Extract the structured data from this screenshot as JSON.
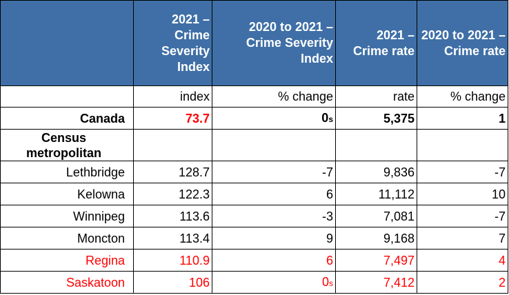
{
  "columns": [
    "2021 – Crime Severity Index",
    "2020 to 2021 – Crime Severity Index",
    "2021 – Crime rate",
    "2020 to 2021 – Crime rate"
  ],
  "units": [
    "index",
    "% change",
    "rate",
    "% change"
  ],
  "canada": {
    "label": "Canada",
    "csi": "73.7",
    "csi_change": "0",
    "csi_change_flag": "s",
    "rate": "5,375",
    "rate_change": "1"
  },
  "section_label": "Census metropolitan",
  "rows": [
    {
      "name": "Lethbridge",
      "csi": "128.7",
      "csi_change": "-7",
      "rate": "9,836",
      "rate_change": "-7"
    },
    {
      "name": "Kelowna",
      "csi": "122.3",
      "csi_change": "6",
      "rate": "11,112",
      "rate_change": "10"
    },
    {
      "name": "Winnipeg",
      "csi": "113.6",
      "csi_change": "-3",
      "rate": "7,081",
      "rate_change": "-7"
    },
    {
      "name": "Moncton",
      "csi": "113.4",
      "csi_change": "9",
      "rate": "9,168",
      "rate_change": "7"
    },
    {
      "name": "Regina",
      "csi": "110.9",
      "csi_change": "6",
      "rate": "7,497",
      "rate_change": "4"
    },
    {
      "name": "Saskatoon",
      "csi": "106",
      "csi_change": "0",
      "csi_change_flag": "s",
      "rate": "7,412",
      "rate_change": "2"
    }
  ],
  "colors": {
    "header_bg": "#3f6fa6",
    "highlight": "#ff0000"
  }
}
